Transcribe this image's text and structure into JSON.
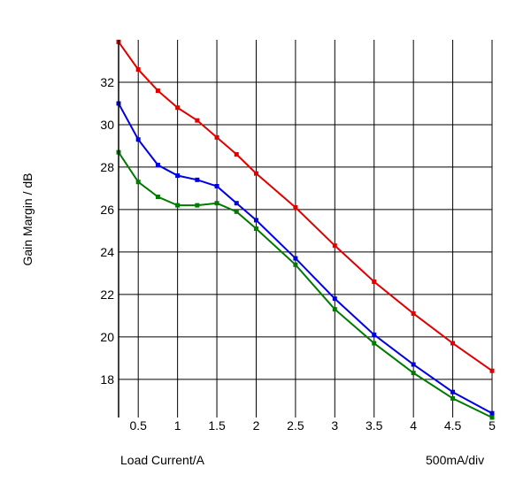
{
  "chart_data": {
    "type": "line",
    "xlabel": "Load Current/A",
    "x_note": "500mA/div",
    "ylabel": "Gain Margin / dB",
    "xlim": [
      0.25,
      5
    ],
    "ylim": [
      16.2,
      34
    ],
    "x_ticks": [
      0.5,
      1,
      1.5,
      2,
      2.5,
      3,
      3.5,
      4,
      4.5,
      5
    ],
    "x_tick_labels": [
      "0.5",
      "1",
      "1.5",
      "2",
      "2.5",
      "3",
      "3.5",
      "4",
      "4.5",
      "5"
    ],
    "y_ticks": [
      18,
      20,
      22,
      24,
      26,
      28,
      30,
      32
    ],
    "y_tick_labels": [
      "18",
      "20",
      "22",
      "24",
      "26",
      "28",
      "30",
      "32"
    ],
    "grid": true,
    "x": [
      0.25,
      0.5,
      0.75,
      1,
      1.25,
      1.5,
      1.75,
      2,
      2.5,
      3,
      3.5,
      4,
      4.5,
      5
    ],
    "series": [
      {
        "color": "#e00000",
        "values": [
          33.9,
          32.6,
          31.6,
          30.8,
          30.2,
          29.4,
          28.6,
          27.7,
          26.1,
          24.3,
          22.6,
          21.1,
          19.7,
          18.4
        ]
      },
      {
        "color": "#0000e0",
        "values": [
          31.0,
          29.3,
          28.1,
          27.6,
          27.4,
          27.1,
          26.3,
          25.5,
          23.7,
          21.8,
          20.1,
          18.7,
          17.4,
          16.4
        ]
      },
      {
        "color": "#007a00",
        "values": [
          28.7,
          27.3,
          26.6,
          26.2,
          26.2,
          26.3,
          25.9,
          25.1,
          23.4,
          21.3,
          19.7,
          18.3,
          17.1,
          16.2
        ]
      }
    ]
  }
}
